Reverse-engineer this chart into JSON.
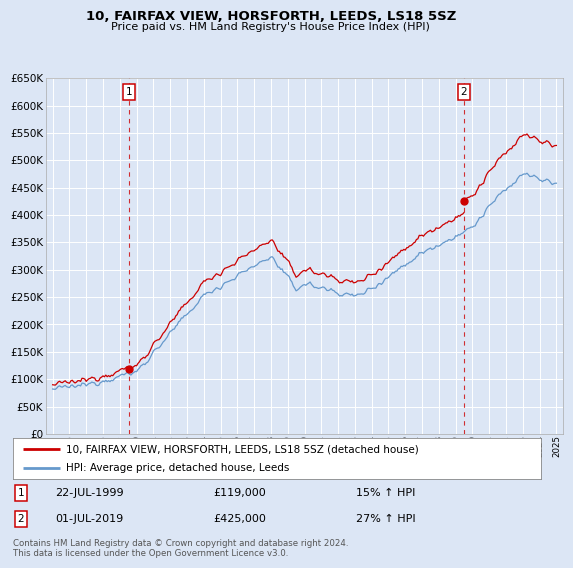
{
  "title": "10, FAIRFAX VIEW, HORSFORTH, LEEDS, LS18 5SZ",
  "subtitle": "Price paid vs. HM Land Registry's House Price Index (HPI)",
  "background_color": "#dce6f5",
  "plot_bg_color": "#dce6f5",
  "grid_color": "#ffffff",
  "red_line_color": "#cc0000",
  "blue_line_color": "#6699cc",
  "ylim": [
    0,
    650000
  ],
  "sale1_year": 1999.55,
  "sale1_price": 119000,
  "sale2_year": 2019.5,
  "sale2_price": 425000,
  "sale1_date": "22-JUL-1999",
  "sale1_pct": "15% ↑ HPI",
  "sale2_date": "01-JUL-2019",
  "sale2_pct": "27% ↑ HPI",
  "legend_red": "10, FAIRFAX VIEW, HORSFORTH, LEEDS, LS18 5SZ (detached house)",
  "legend_blue": "HPI: Average price, detached house, Leeds",
  "footer": "Contains HM Land Registry data © Crown copyright and database right 2024.\nThis data is licensed under the Open Government Licence v3.0.",
  "xstart": 1995,
  "xend": 2025
}
